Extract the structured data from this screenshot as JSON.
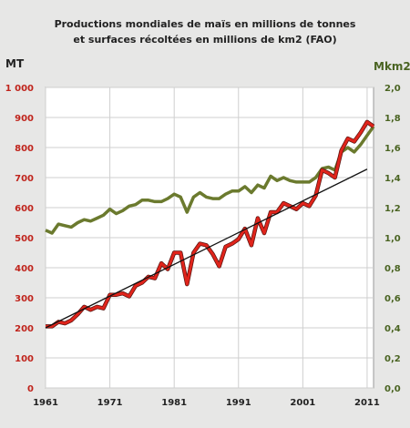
{
  "chart_data": {
    "type": "line",
    "title_line1": "Productions mondiales de maïs en millions de tonnes",
    "title_line2": "et surfaces récoltées en millions de km2 (FAO)",
    "y_left_label": "MT",
    "y_right_label": "Mkm2",
    "y_left_ticks": [
      "0",
      "100",
      "200",
      "300",
      "400",
      "500",
      "600",
      "700",
      "800",
      "900",
      "1 000"
    ],
    "y_right_ticks": [
      "0,0",
      "0,2",
      "0,4",
      "0,6",
      "0,8",
      "1,0",
      "1,2",
      "1,4",
      "1,6",
      "1,8",
      "2,0"
    ],
    "x_ticks": [
      "1961",
      "1971",
      "1981",
      "1991",
      "2001",
      "2011"
    ],
    "ylim_left": [
      0,
      1000
    ],
    "ylim_right": [
      0,
      2.0
    ],
    "xlim": [
      1961,
      2012
    ],
    "grid": true,
    "colors": {
      "production": "#e0241b",
      "production_edge": "#5a1410",
      "surface": "#6b7a2e",
      "trend": "#111111"
    },
    "series": [
      {
        "axis": "left",
        "x": [
          1961,
          1962,
          1963,
          1964,
          1965,
          1966,
          1967,
          1968,
          1969,
          1970,
          1971,
          1972,
          1973,
          1974,
          1975,
          1976,
          1977,
          1978,
          1979,
          1980,
          1981,
          1982,
          1983,
          1984,
          1985,
          1986,
          1987,
          1988,
          1989,
          1990,
          1991,
          1992,
          1993,
          1994,
          1995,
          1996,
          1997,
          1998,
          1999,
          2000,
          2001,
          2002,
          2003,
          2004,
          2005,
          2006,
          2007,
          2008,
          2009,
          2010,
          2011,
          2012
        ],
        "values": [
          205,
          205,
          220,
          215,
          225,
          245,
          270,
          260,
          270,
          265,
          310,
          310,
          315,
          305,
          340,
          350,
          370,
          365,
          415,
          395,
          450,
          450,
          345,
          450,
          480,
          475,
          445,
          405,
          470,
          480,
          495,
          530,
          475,
          565,
          515,
          585,
          585,
          615,
          605,
          595,
          615,
          605,
          640,
          725,
          715,
          700,
          790,
          830,
          820,
          850,
          885,
          870
        ]
      },
      {
        "axis": "right",
        "x": [
          1961,
          1962,
          1963,
          1964,
          1965,
          1966,
          1967,
          1968,
          1969,
          1970,
          1971,
          1972,
          1973,
          1974,
          1975,
          1976,
          1977,
          1978,
          1979,
          1980,
          1981,
          1982,
          1983,
          1984,
          1985,
          1986,
          1987,
          1988,
          1989,
          1990,
          1991,
          1992,
          1993,
          1994,
          1995,
          1996,
          1997,
          1998,
          1999,
          2000,
          2001,
          2002,
          2003,
          2004,
          2005,
          2006,
          2007,
          2008,
          2009,
          2010,
          2011,
          2012
        ],
        "values": [
          1.05,
          1.03,
          1.09,
          1.08,
          1.07,
          1.1,
          1.12,
          1.11,
          1.13,
          1.15,
          1.19,
          1.16,
          1.18,
          1.21,
          1.22,
          1.25,
          1.25,
          1.24,
          1.24,
          1.26,
          1.29,
          1.27,
          1.17,
          1.27,
          1.3,
          1.27,
          1.26,
          1.26,
          1.29,
          1.31,
          1.31,
          1.34,
          1.3,
          1.35,
          1.33,
          1.41,
          1.38,
          1.4,
          1.38,
          1.37,
          1.37,
          1.37,
          1.4,
          1.46,
          1.47,
          1.45,
          1.57,
          1.6,
          1.57,
          1.62,
          1.68,
          1.74
        ]
      },
      {
        "axis": "left",
        "x": [
          1961,
          2011
        ],
        "values": [
          200,
          728
        ]
      }
    ]
  }
}
